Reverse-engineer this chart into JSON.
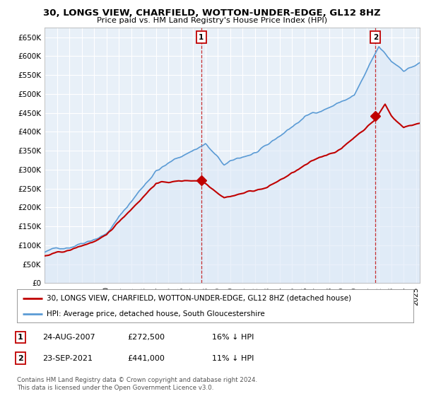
{
  "title": "30, LONGS VIEW, CHARFIELD, WOTTON-UNDER-EDGE, GL12 8HZ",
  "subtitle": "Price paid vs. HM Land Registry's House Price Index (HPI)",
  "ylabel_ticks": [
    "£0",
    "£50K",
    "£100K",
    "£150K",
    "£200K",
    "£250K",
    "£300K",
    "£350K",
    "£400K",
    "£450K",
    "£500K",
    "£550K",
    "£600K",
    "£650K"
  ],
  "ytick_values": [
    0,
    50000,
    100000,
    150000,
    200000,
    250000,
    300000,
    350000,
    400000,
    450000,
    500000,
    550000,
    600000,
    650000
  ],
  "ylim": [
    0,
    675000
  ],
  "hpi_color": "#5b9bd5",
  "hpi_fill_color": "#dce9f7",
  "price_color": "#c00000",
  "legend_line1": "30, LONGS VIEW, CHARFIELD, WOTTON-UNDER-EDGE, GL12 8HZ (detached house)",
  "legend_line2": "HPI: Average price, detached house, South Gloucestershire",
  "table_row1": [
    "1",
    "24-AUG-2007",
    "£272,500",
    "16% ↓ HPI"
  ],
  "table_row2": [
    "2",
    "23-SEP-2021",
    "£441,000",
    "11% ↓ HPI"
  ],
  "footnote": "Contains HM Land Registry data © Crown copyright and database right 2024.\nThis data is licensed under the Open Government Licence v3.0.",
  "background_color": "#ffffff",
  "grid_color": "#c8d8e8",
  "sale1_year": 2007.65,
  "sale1_price": 272500,
  "sale2_year": 2021.73,
  "sale2_price": 441000,
  "xmin": 1995.0,
  "xmax": 2025.3
}
